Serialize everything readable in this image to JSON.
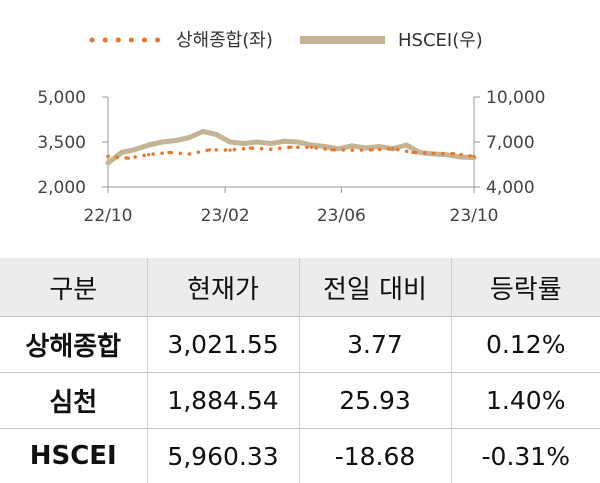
{
  "chart_data": {
    "type": "line",
    "legend": [
      {
        "label": "상해종합(좌)",
        "color": "#e8772e",
        "style": "dotted"
      },
      {
        "label": "HSCEI(우)",
        "color": "#c4b494",
        "style": "solid"
      }
    ],
    "x_ticks": [
      "22/10",
      "23/02",
      "23/06",
      "23/10"
    ],
    "left_axis": {
      "ticks": [
        "5,000",
        "3,500",
        "2,000"
      ],
      "ylim": [
        2000,
        5000
      ]
    },
    "right_axis": {
      "ticks": [
        "10,000",
        "7,000",
        "4,000"
      ],
      "ylim": [
        4000,
        10000
      ]
    },
    "series": [
      {
        "name": "상해종합(좌)",
        "axis": "left",
        "x": [
          "2022-10-03",
          "2022-10-24",
          "2022-11-14",
          "2022-12-05",
          "2022-12-26",
          "2023-01-16",
          "2023-02-06",
          "2023-02-27",
          "2023-03-20",
          "2023-04-10",
          "2023-05-01",
          "2023-05-22",
          "2023-06-12",
          "2023-07-03",
          "2023-07-24",
          "2023-08-14",
          "2023-09-04",
          "2023-09-25",
          "2023-10-16"
        ],
        "values": [
          3020,
          2960,
          3080,
          3150,
          3100,
          3240,
          3230,
          3300,
          3260,
          3330,
          3320,
          3240,
          3230,
          3240,
          3280,
          3150,
          3120,
          3110,
          3020
        ]
      },
      {
        "name": "HSCEI(우)",
        "axis": "right",
        "x": [
          "2022-10-03",
          "2022-10-17",
          "2022-10-31",
          "2022-11-14",
          "2022-11-28",
          "2022-12-12",
          "2022-12-26",
          "2023-01-09",
          "2023-01-23",
          "2023-02-06",
          "2023-02-20",
          "2023-03-06",
          "2023-03-20",
          "2023-04-03",
          "2023-04-17",
          "2023-05-01",
          "2023-05-15",
          "2023-05-29",
          "2023-06-12",
          "2023-06-26",
          "2023-07-10",
          "2023-07-24",
          "2023-08-07",
          "2023-08-21",
          "2023-09-04",
          "2023-09-18",
          "2023-10-02",
          "2023-10-16"
        ],
        "values": [
          5600,
          6300,
          6500,
          6800,
          7000,
          7100,
          7300,
          7700,
          7500,
          7000,
          6900,
          7000,
          6900,
          7050,
          7000,
          6800,
          6700,
          6550,
          6750,
          6600,
          6700,
          6550,
          6800,
          6300,
          6200,
          6150,
          6000,
          5960
        ]
      }
    ]
  },
  "table": {
    "headers": [
      "구분",
      "현재가",
      "전일 대비",
      "등락률"
    ],
    "rows": [
      [
        "상해종합",
        "3,021.55",
        "3.77",
        "0.12%"
      ],
      [
        "심천",
        "1,884.54",
        "25.93",
        "1.40%"
      ],
      [
        "HSCEI",
        "5,960.33",
        "-18.68",
        "-0.31%"
      ]
    ]
  }
}
